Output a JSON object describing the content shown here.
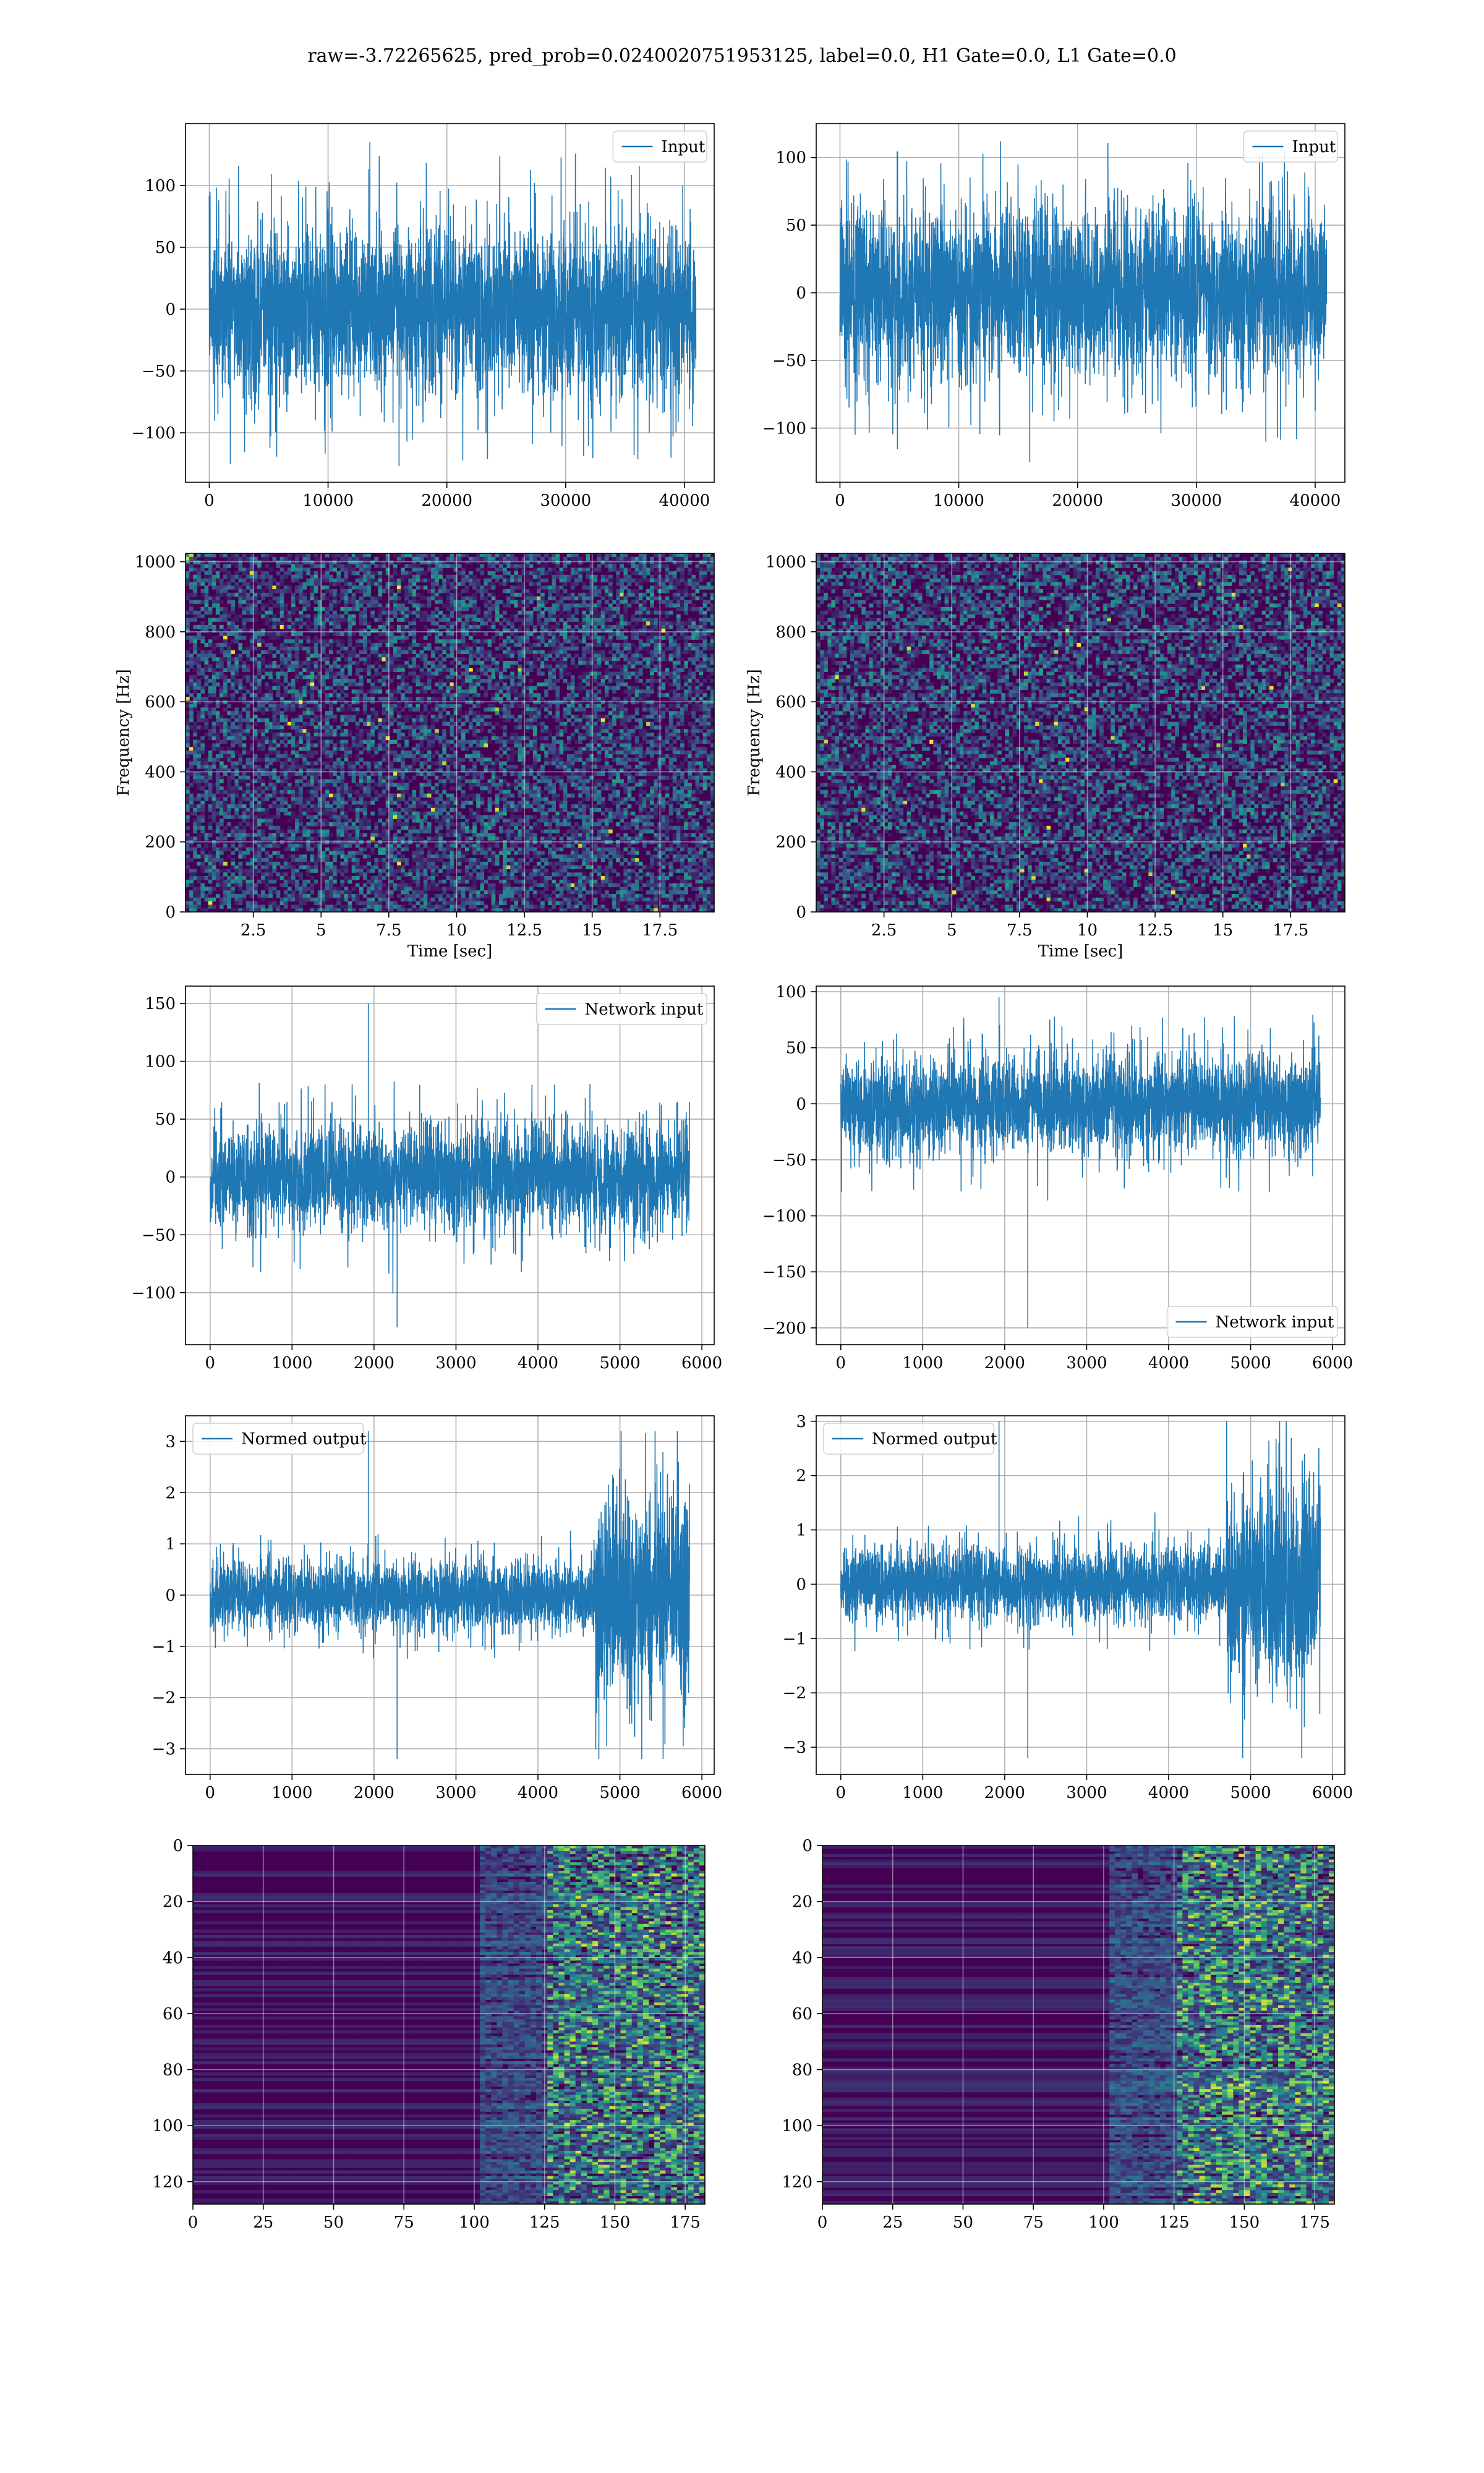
{
  "figure": {
    "suptitle": "raw=-3.72265625, pred_prob=0.0240020751953125, label=0.0, H1 Gate=0.0, L1 Gate=0.0",
    "colors": {
      "series": "#1f77b4",
      "grid": "#b0b0b0",
      "viridis_low": "#440154",
      "viridis_mid": "#21918c",
      "viridis_high": "#fde725"
    }
  },
  "chart_data": [
    {
      "id": "input_h1",
      "type": "line",
      "series": [
        {
          "name": "Input",
          "n_points": 40960,
          "amplitude_approx": 60,
          "spike_max": 135,
          "spike_min": -127
        }
      ],
      "xlim": [
        -2000,
        42500
      ],
      "ylim": [
        -140,
        150
      ],
      "xticks": [
        0,
        10000,
        20000,
        30000,
        40000
      ],
      "yticks": [
        -100,
        -50,
        0,
        50,
        100
      ],
      "legend": "upper right",
      "grid": true,
      "xlabel": "",
      "ylabel": ""
    },
    {
      "id": "input_l1",
      "type": "line",
      "series": [
        {
          "name": "Input",
          "n_points": 40960,
          "amplitude_approx": 55,
          "spike_max": 112,
          "spike_min": -125
        }
      ],
      "xlim": [
        -2000,
        42500
      ],
      "ylim": [
        -140,
        125
      ],
      "xticks": [
        0,
        10000,
        20000,
        30000,
        40000
      ],
      "yticks": [
        -100,
        -50,
        0,
        50,
        100
      ],
      "legend": "upper right",
      "grid": true,
      "xlabel": "",
      "ylabel": ""
    },
    {
      "id": "spec_h1",
      "type": "heatmap",
      "xlabel": "Time [sec]",
      "ylabel": "Frequency [Hz]",
      "xlim": [
        0,
        19.5
      ],
      "ylim": [
        0,
        1024
      ],
      "xticks": [
        2.5,
        5.0,
        7.5,
        10.0,
        12.5,
        15.0,
        17.5
      ],
      "yticks": [
        0,
        200,
        400,
        600,
        800,
        1000
      ],
      "colormap": "viridis",
      "grid": true
    },
    {
      "id": "spec_l1",
      "type": "heatmap",
      "xlabel": "Time [sec]",
      "ylabel": "Frequency [Hz]",
      "xlim": [
        0,
        19.5
      ],
      "ylim": [
        0,
        1024
      ],
      "xticks": [
        2.5,
        5.0,
        7.5,
        10.0,
        12.5,
        15.0,
        17.5
      ],
      "yticks": [
        0,
        200,
        400,
        600,
        800,
        1000
      ],
      "colormap": "viridis",
      "grid": true
    },
    {
      "id": "net_h1",
      "type": "line",
      "series": [
        {
          "name": "Network input",
          "n_points": 5850,
          "amplitude_approx": 40,
          "spike_max": 150,
          "spike_min": -130
        }
      ],
      "xlim": [
        -300,
        6150
      ],
      "ylim": [
        -145,
        165
      ],
      "xticks": [
        0,
        1000,
        2000,
        3000,
        4000,
        5000,
        6000
      ],
      "yticks": [
        -100,
        -50,
        0,
        50,
        100,
        150
      ],
      "legend": "upper right",
      "grid": true,
      "xlabel": "",
      "ylabel": ""
    },
    {
      "id": "net_l1",
      "type": "line",
      "series": [
        {
          "name": "Network input",
          "n_points": 5850,
          "amplitude_approx": 38,
          "spike_max": 95,
          "spike_min": -200
        }
      ],
      "xlim": [
        -300,
        6150
      ],
      "ylim": [
        -215,
        105
      ],
      "xticks": [
        0,
        1000,
        2000,
        3000,
        4000,
        5000,
        6000
      ],
      "yticks": [
        -200,
        -150,
        -100,
        -50,
        0,
        50,
        100
      ],
      "legend": "lower right",
      "grid": true,
      "xlabel": "",
      "ylabel": ""
    },
    {
      "id": "norm_h1",
      "type": "line",
      "series": [
        {
          "name": "Normed output",
          "n_points": 5850,
          "amplitude_approx": 0.6,
          "burst_start": 4700,
          "burst_amplitude": 1.8,
          "spike_max": 3.2,
          "spike_min": -3.2
        }
      ],
      "xlim": [
        -300,
        6150
      ],
      "ylim": [
        -3.5,
        3.5
      ],
      "xticks": [
        0,
        1000,
        2000,
        3000,
        4000,
        5000,
        6000
      ],
      "yticks": [
        -3,
        -2,
        -1,
        0,
        1,
        2,
        3
      ],
      "legend": "upper left",
      "grid": true,
      "xlabel": "",
      "ylabel": ""
    },
    {
      "id": "norm_l1",
      "type": "line",
      "series": [
        {
          "name": "Normed output",
          "n_points": 5850,
          "amplitude_approx": 0.6,
          "burst_start": 4700,
          "burst_amplitude": 1.7,
          "spike_max": 3.0,
          "spike_min": -3.2
        }
      ],
      "xlim": [
        -300,
        6150
      ],
      "ylim": [
        -3.5,
        3.1
      ],
      "xticks": [
        0,
        1000,
        2000,
        3000,
        4000,
        5000,
        6000
      ],
      "yticks": [
        -3,
        -2,
        -1,
        0,
        1,
        2,
        3
      ],
      "legend": "upper left",
      "grid": true,
      "xlabel": "",
      "ylabel": ""
    },
    {
      "id": "feat_h1",
      "type": "heatmap",
      "xlim": [
        0,
        182
      ],
      "ylim": [
        128,
        0
      ],
      "xticks": [
        0,
        25,
        50,
        75,
        100,
        125,
        150,
        175
      ],
      "yticks": [
        0,
        20,
        40,
        60,
        80,
        100,
        120
      ],
      "colormap": "viridis",
      "grid": true,
      "active_from_x": 125
    },
    {
      "id": "feat_l1",
      "type": "heatmap",
      "xlim": [
        0,
        182
      ],
      "ylim": [
        128,
        0
      ],
      "xticks": [
        0,
        25,
        50,
        75,
        100,
        125,
        150,
        175
      ],
      "yticks": [
        0,
        20,
        40,
        60,
        80,
        100,
        120
      ],
      "colormap": "viridis",
      "grid": true,
      "active_from_x": 125
    }
  ]
}
